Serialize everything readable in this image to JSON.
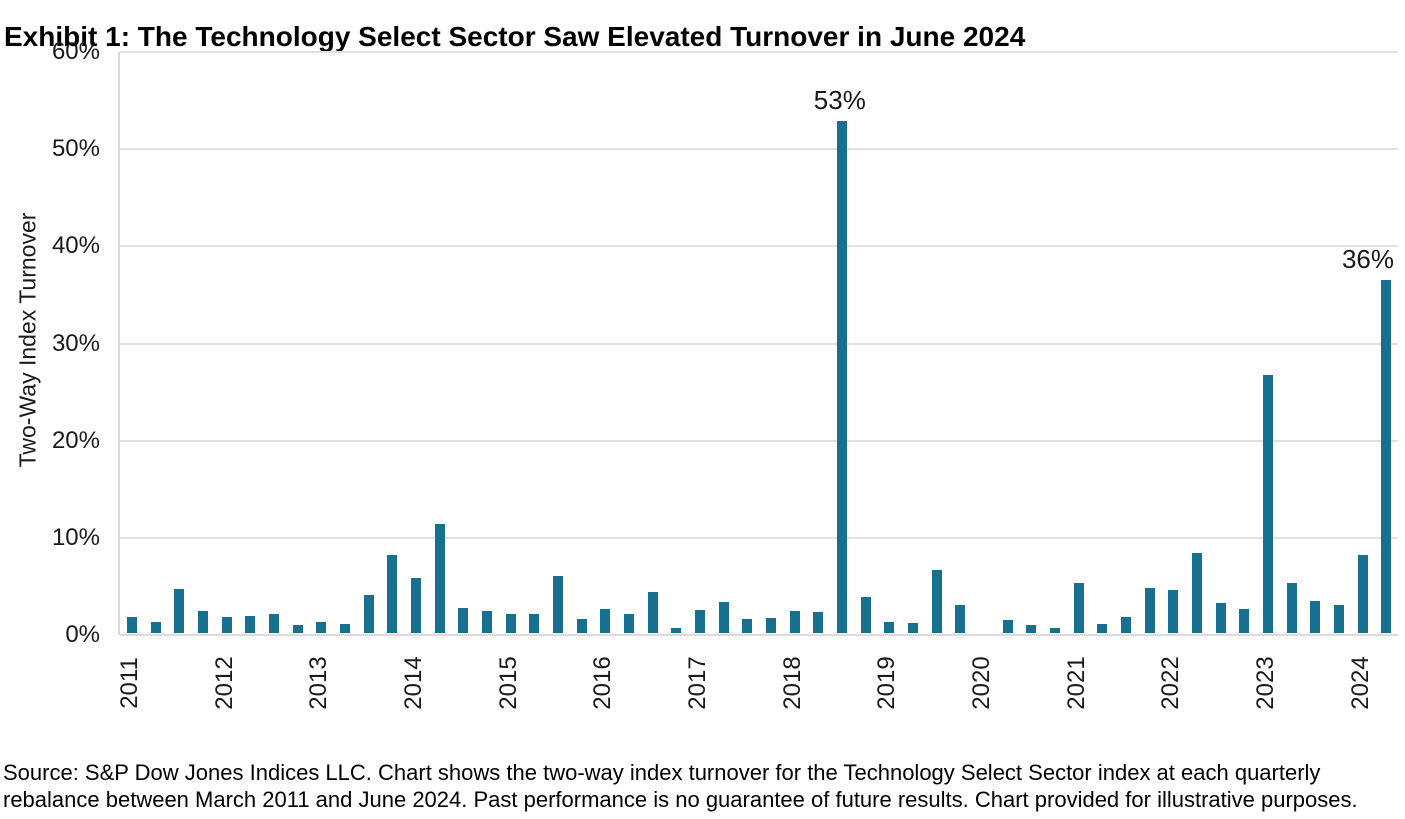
{
  "chart_data": {
    "type": "bar",
    "title": "Exhibit 1: The Technology Select Sector Saw Elevated Turnover in June 2024",
    "xlabel": "",
    "ylabel": "Two-Way Index Turnover",
    "ylim": [
      0,
      60
    ],
    "ytick_labels": [
      "60%",
      "50%",
      "40%",
      "30%",
      "20%",
      "10%",
      "0%"
    ],
    "grid": true,
    "legend": "none",
    "bar_color": "#17708f",
    "gridline_color": "#e2e2e2",
    "categories": [
      "2011 Q1",
      "2011 Q2",
      "2011 Q3",
      "2011 Q4",
      "2012 Q1",
      "2012 Q2",
      "2012 Q3",
      "2012 Q4",
      "2013 Q1",
      "2013 Q2",
      "2013 Q3",
      "2013 Q4",
      "2014 Q1",
      "2014 Q2",
      "2014 Q3",
      "2014 Q4",
      "2015 Q1",
      "2015 Q2",
      "2015 Q3",
      "2015 Q4",
      "2016 Q1",
      "2016 Q2",
      "2016 Q3",
      "2016 Q4",
      "2017 Q1",
      "2017 Q2",
      "2017 Q3",
      "2017 Q4",
      "2018 Q1",
      "2018 Q2",
      "2018 Q3",
      "2018 Q4",
      "2019 Q1",
      "2019 Q2",
      "2019 Q3",
      "2019 Q4",
      "2020 Q1",
      "2020 Q2",
      "2020 Q3",
      "2020 Q4",
      "2021 Q1",
      "2021 Q2",
      "2021 Q3",
      "2021 Q4",
      "2022 Q1",
      "2022 Q2",
      "2022 Q3",
      "2022 Q4",
      "2023 Q1",
      "2023 Q2",
      "2023 Q3",
      "2023 Q4",
      "2024 Q1",
      "2024 Q2"
    ],
    "values": [
      1.6,
      1.1,
      4.5,
      2.3,
      1.6,
      1.8,
      2.0,
      0.8,
      1.1,
      0.9,
      3.9,
      8.0,
      5.7,
      11.2,
      2.6,
      2.3,
      2.0,
      2.0,
      5.9,
      1.4,
      2.5,
      2.0,
      4.2,
      0.5,
      2.4,
      3.2,
      1.4,
      1.5,
      2.3,
      2.2,
      52.7,
      3.7,
      1.1,
      1.0,
      6.5,
      2.9,
      0.0,
      1.3,
      0.8,
      0.5,
      5.1,
      0.9,
      1.6,
      4.6,
      4.4,
      8.2,
      3.1,
      2.5,
      26.6,
      5.1,
      3.3,
      2.9,
      8.0,
      36.3
    ],
    "year_labels": [
      "2011",
      "2012",
      "2013",
      "2014",
      "2015",
      "2016",
      "2017",
      "2018",
      "2019",
      "2020",
      "2021",
      "2022",
      "2023",
      "2024"
    ],
    "annotations": [
      {
        "index": 30,
        "text": "53%"
      },
      {
        "index": 53,
        "text": "36%"
      }
    ]
  },
  "footer": {
    "source_note": "Source: S&P Dow Jones Indices LLC. Chart shows the two-way index turnover for the Technology Select Sector index at each quarterly rebalance between March 2011 and June 2024. Past performance is no guarantee of future results. Chart provided for illustrative purposes."
  }
}
